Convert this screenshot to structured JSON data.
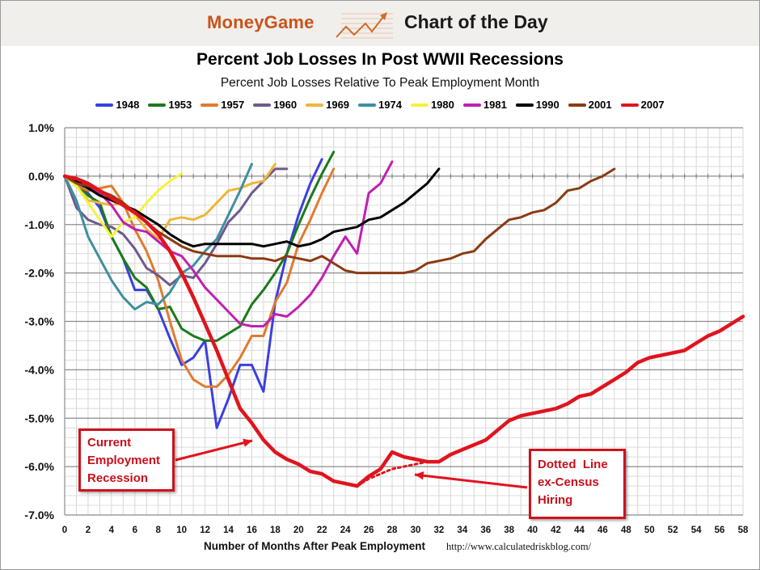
{
  "banner": {
    "brand": "MoneyGame",
    "icon": "rising-chart-arrow-icon",
    "section": "Chart of the Day"
  },
  "annotations": {
    "current": [
      "Current",
      "Employment",
      "Recession"
    ],
    "dotted": [
      "Dotted  Line",
      "ex-Census",
      "Hiring"
    ]
  },
  "chart_data": {
    "type": "line",
    "title": "Percent Job Losses In Post WWII Recessions",
    "subtitle": "Percent Job Losses Relative To Peak Employment Month",
    "xlabel": "Number of Months After Peak Employment",
    "source": "http://www.calculatedriskblog.com/",
    "xlim": [
      0,
      58
    ],
    "ylim": [
      -7.0,
      1.0
    ],
    "xticks": [
      "0",
      "2",
      "4",
      "6",
      "8",
      "10",
      "12",
      "14",
      "16",
      "18",
      "20",
      "22",
      "24",
      "26",
      "28",
      "30",
      "32",
      "34",
      "36",
      "38",
      "40",
      "42",
      "44",
      "46",
      "48",
      "50",
      "52",
      "54",
      "56",
      "58"
    ],
    "yticks": [
      "1.0%",
      "0.0%",
      "-1.0%",
      "-2.0%",
      "-3.0%",
      "-4.0%",
      "-5.0%",
      "-6.0%",
      "-7.0%"
    ],
    "grid": true,
    "legend_position": "top-center",
    "series": [
      {
        "name": "1948",
        "color": "#3b3fe0",
        "values": [
          0,
          -0.1,
          -0.35,
          -0.65,
          -1.25,
          -1.7,
          -2.35,
          -2.35,
          -2.75,
          -3.35,
          -3.9,
          -3.75,
          -3.4,
          -5.2,
          -4.6,
          -3.9,
          -3.9,
          -4.45,
          -2.6,
          -1.6,
          -0.8,
          -0.15,
          0.35
        ]
      },
      {
        "name": "1953",
        "color": "#1b7a1b",
        "values": [
          0,
          -0.15,
          -0.4,
          -0.55,
          -1.25,
          -1.7,
          -2.1,
          -2.3,
          -2.75,
          -2.7,
          -3.15,
          -3.3,
          -3.4,
          -3.4,
          -3.25,
          -3.1,
          -2.65,
          -2.35,
          -2.0,
          -1.6,
          -1.0,
          -0.45,
          0.05,
          0.5
        ]
      },
      {
        "name": "1957",
        "color": "#e07b30",
        "values": [
          0,
          -0.2,
          -0.3,
          -0.25,
          -0.2,
          -0.55,
          -1.1,
          -1.55,
          -2.15,
          -3.0,
          -3.8,
          -4.2,
          -4.35,
          -4.35,
          -4.1,
          -3.75,
          -3.3,
          -3.3,
          -2.6,
          -2.2,
          -1.4,
          -0.9,
          -0.35,
          0.15
        ]
      },
      {
        "name": "1960",
        "color": "#6d5a8e",
        "values": [
          0,
          -0.65,
          -0.9,
          -1.0,
          -1.05,
          -1.2,
          -1.5,
          -1.9,
          -2.05,
          -2.25,
          -2.05,
          -2.1,
          -1.8,
          -1.4,
          -0.95,
          -0.7,
          -0.35,
          -0.1,
          0.15,
          0.15
        ]
      },
      {
        "name": "1969",
        "color": "#f0b53a",
        "values": [
          0,
          -0.2,
          -0.5,
          -0.55,
          -0.6,
          -0.55,
          -0.8,
          -1.1,
          -1.3,
          -0.9,
          -0.85,
          -0.9,
          -0.8,
          -0.55,
          -0.3,
          -0.25,
          -0.15,
          -0.1,
          0.25
        ]
      },
      {
        "name": "1974",
        "color": "#3f8fa0",
        "values": [
          0,
          -0.5,
          -1.25,
          -1.7,
          -2.15,
          -2.5,
          -2.75,
          -2.6,
          -2.65,
          -2.4,
          -2.0,
          -1.85,
          -1.55,
          -1.3,
          -0.8,
          -0.3,
          0.25
        ]
      },
      {
        "name": "1980",
        "color": "#f5f23a",
        "values": [
          0,
          -0.2,
          -0.55,
          -0.9,
          -1.25,
          -0.95,
          -0.85,
          -0.55,
          -0.3,
          -0.1,
          0.05
        ]
      },
      {
        "name": "1981",
        "color": "#c020b0",
        "values": [
          0,
          -0.1,
          -0.2,
          -0.35,
          -0.6,
          -0.95,
          -1.1,
          -1.15,
          -1.35,
          -1.55,
          -1.65,
          -1.95,
          -2.3,
          -2.55,
          -2.8,
          -3.05,
          -3.1,
          -3.1,
          -2.85,
          -2.9,
          -2.7,
          -2.45,
          -2.1,
          -1.65,
          -1.25,
          -1.6,
          -0.35,
          -0.15,
          0.3
        ]
      },
      {
        "name": "1990",
        "color": "#000000",
        "values": [
          0,
          -0.1,
          -0.25,
          -0.4,
          -0.5,
          -0.6,
          -0.7,
          -0.85,
          -1.0,
          -1.2,
          -1.35,
          -1.45,
          -1.4,
          -1.4,
          -1.4,
          -1.4,
          -1.4,
          -1.45,
          -1.4,
          -1.35,
          -1.45,
          -1.4,
          -1.3,
          -1.15,
          -1.1,
          -1.05,
          -0.9,
          -0.85,
          -0.7,
          -0.55,
          -0.35,
          -0.15,
          0.15
        ]
      },
      {
        "name": "2001",
        "color": "#8b3a12",
        "values": [
          0,
          -0.15,
          -0.2,
          -0.3,
          -0.4,
          -0.55,
          -0.75,
          -0.95,
          -1.15,
          -1.3,
          -1.45,
          -1.55,
          -1.6,
          -1.65,
          -1.65,
          -1.65,
          -1.7,
          -1.7,
          -1.75,
          -1.65,
          -1.7,
          -1.75,
          -1.65,
          -1.8,
          -1.95,
          -2.0,
          -2.0,
          -2.0,
          -2.0,
          -2.0,
          -1.95,
          -1.8,
          -1.75,
          -1.7,
          -1.6,
          -1.55,
          -1.3,
          -1.1,
          -0.9,
          -0.85,
          -0.75,
          -0.7,
          -0.55,
          -0.3,
          -0.25,
          -0.1,
          0.0,
          0.15
        ]
      },
      {
        "name": "2007",
        "color": "#e0141e",
        "values": [
          0,
          -0.05,
          -0.15,
          -0.3,
          -0.45,
          -0.6,
          -0.75,
          -0.95,
          -1.2,
          -1.55,
          -2.0,
          -2.5,
          -3.05,
          -3.6,
          -4.2,
          -4.8,
          -5.1,
          -5.45,
          -5.7,
          -5.85,
          -5.95,
          -6.1,
          -6.15,
          -6.3,
          -6.35,
          -6.4,
          -6.2,
          -6.05,
          -5.7,
          -5.8,
          -5.85,
          -5.9,
          -5.9,
          -5.75,
          -5.65,
          -5.55,
          -5.45,
          -5.25,
          -5.05,
          -4.95,
          -4.9,
          -4.85,
          -4.8,
          -4.7,
          -4.55,
          -4.5,
          -4.35,
          -4.2,
          -4.05,
          -3.85,
          -3.75,
          -3.7,
          -3.65,
          -3.6,
          -3.45,
          -3.3,
          -3.2,
          -3.05,
          -2.9
        ]
      },
      {
        "name": "2007 ex-Census (dotted)",
        "color": "#e0141e",
        "x": [
          25,
          26,
          27,
          28,
          29,
          30,
          31,
          32
        ],
        "values": [
          -6.4,
          -6.25,
          -6.15,
          -6.05,
          -6.0,
          -5.95,
          -5.9,
          -5.9
        ]
      }
    ]
  }
}
